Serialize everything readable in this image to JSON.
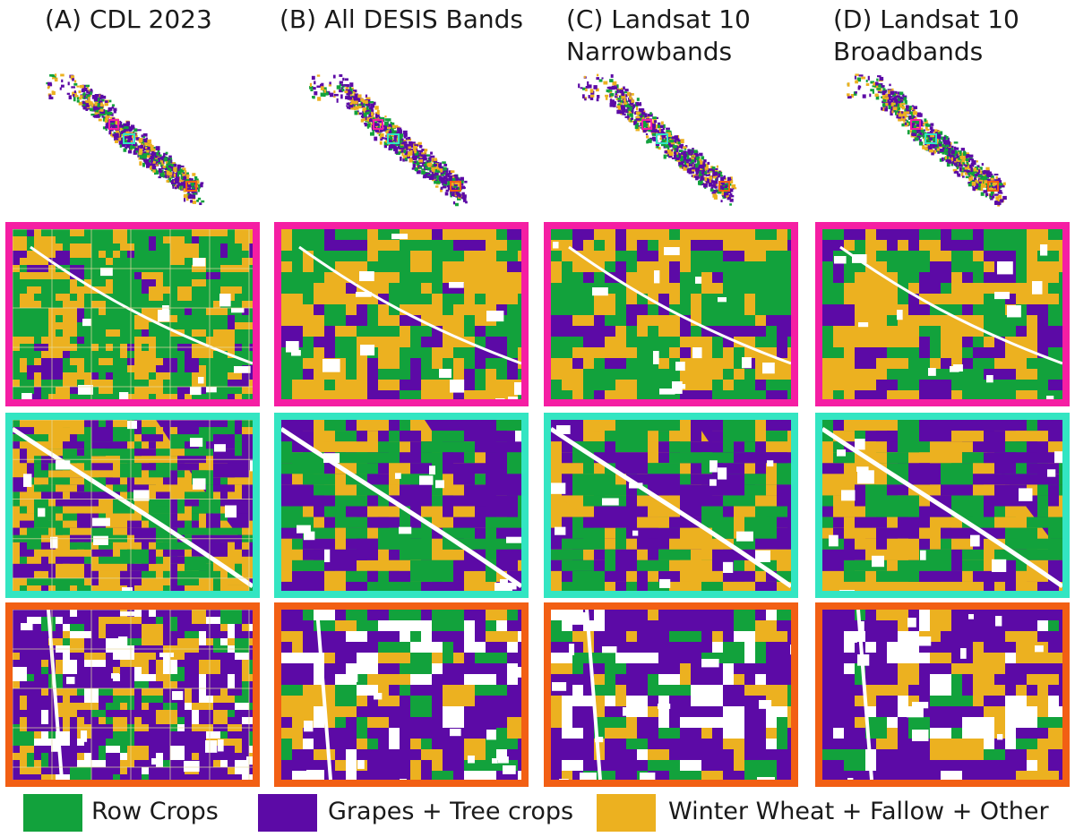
{
  "colors": {
    "row_crops": "#12a23c",
    "grapes_tree": "#5c0aa6",
    "wheat_fallow_other": "#ecb120",
    "nodata": "#ffffff",
    "region_magenta": "#f51ea3",
    "region_cyan": "#33e5c2",
    "region_orange": "#f25f14"
  },
  "columns": [
    {
      "title": "(A) CDL 2023"
    },
    {
      "title": "(B) All DESIS Bands"
    },
    {
      "title": "(C) Landsat 10\nNarrowbands"
    },
    {
      "title": "(D) Landsat 10\nBroadbands"
    }
  ],
  "regions": [
    {
      "name": "magenta region",
      "border_color": "#f51ea3"
    },
    {
      "name": "cyan region",
      "border_color": "#33e5c2"
    },
    {
      "name": "orange region",
      "border_color": "#f25f14"
    }
  ],
  "legend": [
    {
      "label": "Row Crops",
      "color": "#12a23c"
    },
    {
      "label": "Grapes + Tree crops",
      "color": "#5c0aa6"
    },
    {
      "label": "Winter Wheat + Fallow + Other",
      "color": "#ecb120"
    }
  ]
}
